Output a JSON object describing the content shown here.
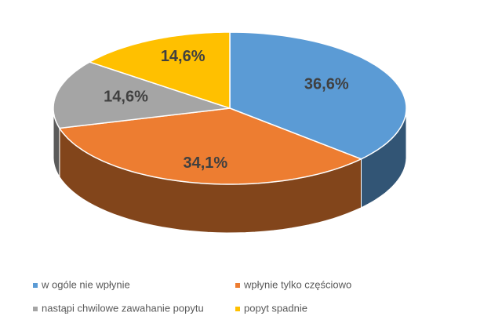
{
  "chart_data": {
    "type": "pie",
    "categories": [
      "w ogóle nie wpłynie",
      "wpłynie tylko częściowo",
      "nastąpi chwilowe zawahanie popytu",
      "popyt spadnie"
    ],
    "values": [
      36.6,
      34.1,
      14.6,
      14.6
    ],
    "value_labels": [
      "36,6%",
      "34,1%",
      "14,6%",
      "14,6%"
    ],
    "colors": [
      "#5b9bd5",
      "#ed7d31",
      "#a5a5a5",
      "#ffc000"
    ],
    "legend": "bottom"
  }
}
